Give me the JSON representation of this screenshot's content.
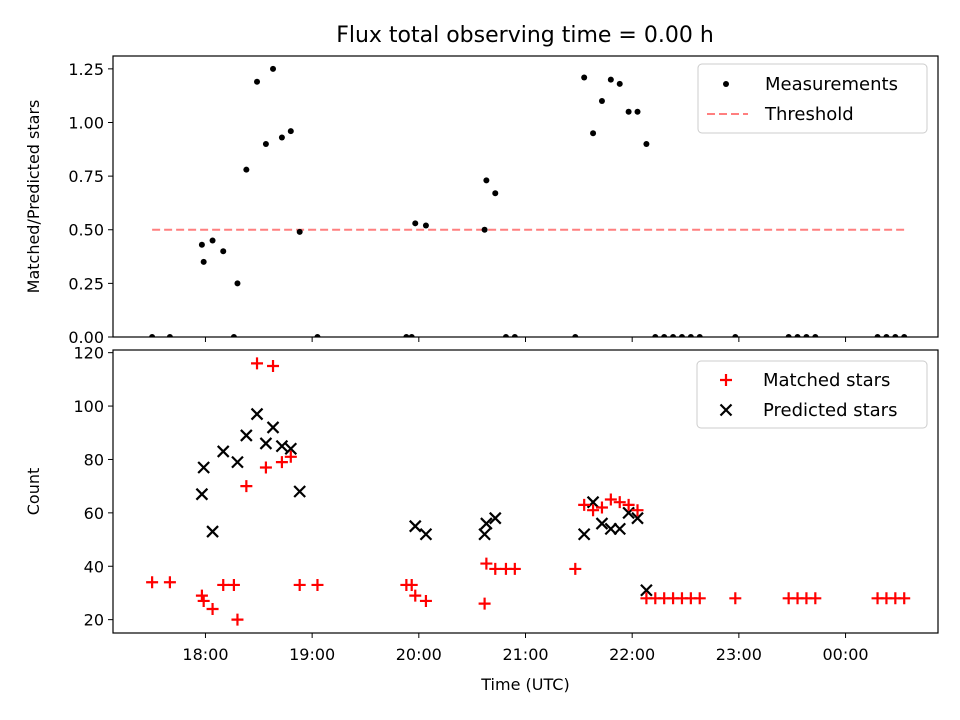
{
  "figure_title": "Flux total observing time = 0.00 h",
  "colors": {
    "measurement": "#000000",
    "threshold": "#ff7f7f",
    "matched": "#ff0000",
    "predicted": "#000000"
  },
  "chart_data": [
    {
      "type": "scatter",
      "title": "Flux total observing time = 0.00 h",
      "ylabel": "Matched/Predicted stars",
      "xlabel": "",
      "xlim": [
        "17:08",
        "00:52"
      ],
      "ylim": [
        0,
        1.31
      ],
      "yticks": [
        "0.00",
        "0.25",
        "0.50",
        "0.75",
        "1.00",
        "1.25"
      ],
      "legend": {
        "position": "top-right",
        "entries": [
          "Measurements",
          "Threshold"
        ]
      },
      "threshold": {
        "name": "Threshold",
        "value": 0.5,
        "x_start": "17:30",
        "x_end": "00:35"
      },
      "series": [
        {
          "name": "Measurements",
          "points": [
            [
              "17:30",
              0
            ],
            [
              "17:40",
              0
            ],
            [
              "17:58",
              0.43
            ],
            [
              "17:59",
              0.35
            ],
            [
              "18:04",
              0.45
            ],
            [
              "18:10",
              0.4
            ],
            [
              "18:16",
              0
            ],
            [
              "18:18",
              0.25
            ],
            [
              "18:23",
              0.78
            ],
            [
              "18:29",
              1.19
            ],
            [
              "18:34",
              0.9
            ],
            [
              "18:38",
              1.25
            ],
            [
              "18:43",
              0.93
            ],
            [
              "18:48",
              0.96
            ],
            [
              "18:53",
              0.49
            ],
            [
              "19:03",
              0
            ],
            [
              "19:53",
              0
            ],
            [
              "19:56",
              0
            ],
            [
              "19:58",
              0.53
            ],
            [
              "20:04",
              0.52
            ],
            [
              "20:37",
              0.5
            ],
            [
              "20:38",
              0.73
            ],
            [
              "20:43",
              0.67
            ],
            [
              "20:49",
              0
            ],
            [
              "20:54",
              0
            ],
            [
              "21:28",
              0
            ],
            [
              "21:33",
              1.21
            ],
            [
              "21:38",
              0.95
            ],
            [
              "21:43",
              1.1
            ],
            [
              "21:48",
              1.2
            ],
            [
              "21:53",
              1.18
            ],
            [
              "21:58",
              1.05
            ],
            [
              "22:03",
              1.05
            ],
            [
              "22:08",
              0.9
            ],
            [
              "22:13",
              0
            ],
            [
              "22:18",
              0
            ],
            [
              "22:23",
              0
            ],
            [
              "22:28",
              0
            ],
            [
              "22:33",
              0
            ],
            [
              "22:38",
              0
            ],
            [
              "22:58",
              0
            ],
            [
              "23:28",
              0
            ],
            [
              "23:33",
              0
            ],
            [
              "23:38",
              0
            ],
            [
              "23:43",
              0
            ],
            [
              "00:18",
              0
            ],
            [
              "00:23",
              0
            ],
            [
              "00:28",
              0
            ],
            [
              "00:33",
              0
            ]
          ]
        }
      ]
    },
    {
      "type": "scatter",
      "title": "",
      "ylabel": "Count",
      "xlabel": "Time (UTC)",
      "xlim": [
        "17:08",
        "00:52"
      ],
      "ylim": [
        15,
        121
      ],
      "xticks": [
        "18:00",
        "19:00",
        "20:00",
        "21:00",
        "22:00",
        "23:00",
        "00:00"
      ],
      "yticks": [
        "20",
        "40",
        "60",
        "80",
        "100",
        "120"
      ],
      "legend": {
        "position": "top-right",
        "entries": [
          "Matched stars",
          "Predicted stars"
        ]
      },
      "series": [
        {
          "name": "Matched stars",
          "points": [
            [
              "17:30",
              34
            ],
            [
              "17:40",
              34
            ],
            [
              "17:58",
              29
            ],
            [
              "17:59",
              27
            ],
            [
              "18:04",
              24
            ],
            [
              "18:10",
              33
            ],
            [
              "18:16",
              33
            ],
            [
              "18:18",
              20
            ],
            [
              "18:23",
              70
            ],
            [
              "18:29",
              116
            ],
            [
              "18:34",
              77
            ],
            [
              "18:38",
              115
            ],
            [
              "18:43",
              79
            ],
            [
              "18:48",
              81
            ],
            [
              "18:53",
              33
            ],
            [
              "19:03",
              33
            ],
            [
              "19:53",
              33
            ],
            [
              "19:56",
              33
            ],
            [
              "19:58",
              29
            ],
            [
              "20:04",
              27
            ],
            [
              "20:37",
              26
            ],
            [
              "20:38",
              41
            ],
            [
              "20:43",
              39
            ],
            [
              "20:49",
              39
            ],
            [
              "20:54",
              39
            ],
            [
              "21:28",
              39
            ],
            [
              "21:33",
              63
            ],
            [
              "21:38",
              61
            ],
            [
              "21:43",
              62
            ],
            [
              "21:48",
              65
            ],
            [
              "21:53",
              64
            ],
            [
              "21:58",
              63
            ],
            [
              "22:03",
              61
            ],
            [
              "22:08",
              28
            ],
            [
              "22:13",
              28
            ],
            [
              "22:18",
              28
            ],
            [
              "22:23",
              28
            ],
            [
              "22:28",
              28
            ],
            [
              "22:33",
              28
            ],
            [
              "22:38",
              28
            ],
            [
              "22:58",
              28
            ],
            [
              "23:28",
              28
            ],
            [
              "23:33",
              28
            ],
            [
              "23:38",
              28
            ],
            [
              "23:43",
              28
            ],
            [
              "00:18",
              28
            ],
            [
              "00:23",
              28
            ],
            [
              "00:28",
              28
            ],
            [
              "00:33",
              28
            ]
          ]
        },
        {
          "name": "Predicted stars",
          "points": [
            [
              "17:58",
              67
            ],
            [
              "17:59",
              77
            ],
            [
              "18:04",
              53
            ],
            [
              "18:10",
              83
            ],
            [
              "18:18",
              79
            ],
            [
              "18:23",
              89
            ],
            [
              "18:29",
              97
            ],
            [
              "18:34",
              86
            ],
            [
              "18:38",
              92
            ],
            [
              "18:43",
              85
            ],
            [
              "18:48",
              84
            ],
            [
              "18:53",
              68
            ],
            [
              "19:58",
              55
            ],
            [
              "20:04",
              52
            ],
            [
              "20:37",
              52
            ],
            [
              "20:38",
              56
            ],
            [
              "20:43",
              58
            ],
            [
              "21:33",
              52
            ],
            [
              "21:38",
              64
            ],
            [
              "21:43",
              56
            ],
            [
              "21:48",
              54
            ],
            [
              "21:53",
              54
            ],
            [
              "21:58",
              60
            ],
            [
              "22:03",
              58
            ],
            [
              "22:08",
              31
            ]
          ]
        }
      ]
    }
  ]
}
